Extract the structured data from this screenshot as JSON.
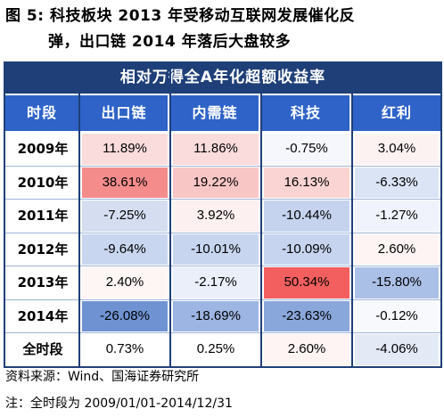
{
  "title": {
    "line1": "图 5:  科技板块 2013 年受移动互联网发展催化反",
    "line2": "弹，出口链 2014 年落后大盘较多"
  },
  "table": {
    "banner": "相对万得全A年化超额收益率",
    "headers": [
      "时段",
      "出口链",
      "内需链",
      "科技",
      "红利"
    ],
    "rows": [
      {
        "label": "2009年",
        "values": [
          "11.89%",
          "11.86%",
          "-0.75%",
          "3.04%"
        ],
        "colors": [
          "#fbdcdc",
          "#fbdcdc",
          "#f6f7fc",
          "#fdf2f2"
        ]
      },
      {
        "label": "2010年",
        "values": [
          "38.61%",
          "19.22%",
          "16.13%",
          "-6.33%"
        ],
        "colors": [
          "#f48c8c",
          "#f9c6c6",
          "#fad3d3",
          "#dbe4f4"
        ]
      },
      {
        "label": "2011年",
        "values": [
          "-7.25%",
          "3.92%",
          "-10.44%",
          "-1.27%"
        ],
        "colors": [
          "#d5def1",
          "#fdf0f0",
          "#c5d3ee",
          "#f0f3fb"
        ]
      },
      {
        "label": "2012年",
        "values": [
          "-9.64%",
          "-10.01%",
          "-10.09%",
          "2.60%"
        ],
        "colors": [
          "#c9d6ef",
          "#c7d5ef",
          "#c7d4ef",
          "#fef4f4"
        ]
      },
      {
        "label": "2013年",
        "values": [
          "2.40%",
          "-2.17%",
          "50.34%",
          "-15.80%"
        ],
        "colors": [
          "#fef5f5",
          "#eaeff9",
          "#f35e5e",
          "#abc0e6"
        ]
      },
      {
        "label": "2014年",
        "values": [
          "-26.08%",
          "-18.69%",
          "-23.63%",
          "-0.12%"
        ],
        "colors": [
          "#6f92d2",
          "#9db5e2",
          "#8aa7dc",
          "#f8f9fd"
        ]
      },
      {
        "label": "全时段",
        "values": [
          "0.73%",
          "0.25%",
          "2.60%",
          "-4.06%"
        ],
        "colors": [
          "#ffffff",
          "#ffffff",
          "#fef4f4",
          "#e3eaf6"
        ]
      }
    ]
  },
  "notes": {
    "source": "资料来源：Wind、国海证券研究所",
    "note": "注：全时段为 2009/01/01-2014/12/31"
  }
}
